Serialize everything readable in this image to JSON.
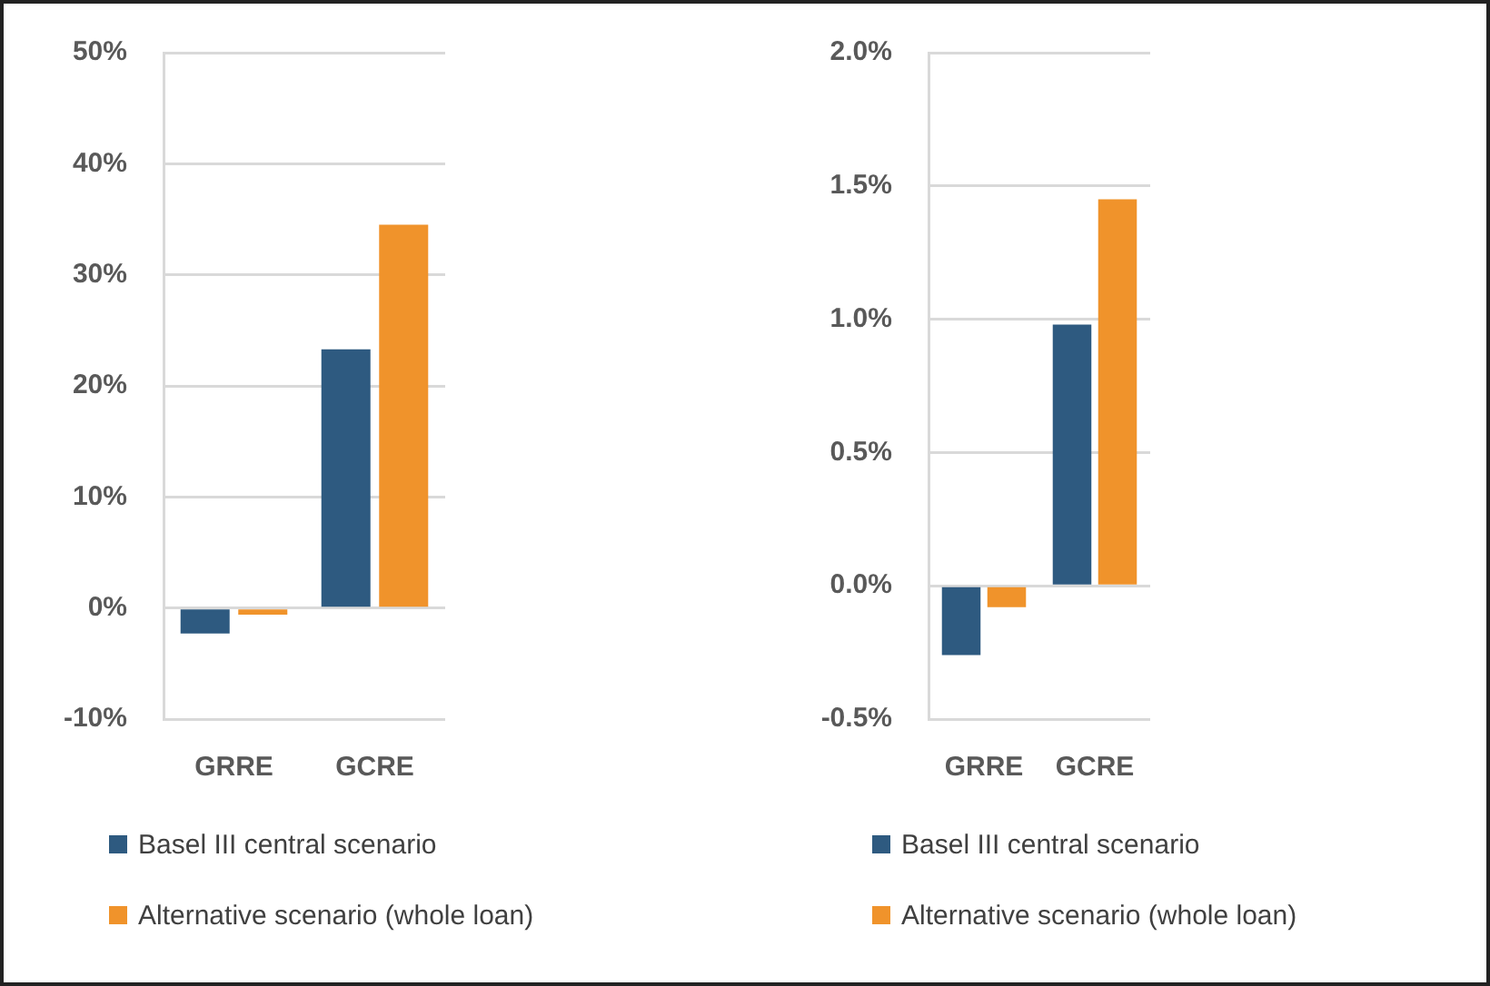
{
  "chart_data": [
    {
      "type": "bar",
      "categories": [
        "GRRE",
        "GCRE"
      ],
      "series": [
        {
          "name": "Basel III central scenario",
          "color": "#2e5a80",
          "values": [
            -2.3,
            23.3
          ]
        },
        {
          "name": "Alternative scenario (whole loan)",
          "color": "#f0932b",
          "values": [
            -0.6,
            34.5
          ]
        }
      ],
      "ylim": [
        -10,
        50
      ],
      "yticks": [
        {
          "value": -10,
          "label": "-10%"
        },
        {
          "value": 0,
          "label": "0%"
        },
        {
          "value": 10,
          "label": "10%"
        },
        {
          "value": 20,
          "label": "20%"
        },
        {
          "value": 30,
          "label": "30%"
        },
        {
          "value": 40,
          "label": "40%"
        },
        {
          "value": 50,
          "label": "50%"
        }
      ],
      "grid": "y",
      "legend": "bottom"
    },
    {
      "type": "bar",
      "categories": [
        "GRRE",
        "GCRE"
      ],
      "series": [
        {
          "name": "Basel III central scenario",
          "color": "#2e5a80",
          "values": [
            -0.26,
            0.98
          ]
        },
        {
          "name": "Alternative scenario (whole loan)",
          "color": "#f0932b",
          "values": [
            -0.08,
            1.45
          ]
        }
      ],
      "ylim": [
        -0.5,
        2.0
      ],
      "yticks": [
        {
          "value": -0.5,
          "label": "-0.5%"
        },
        {
          "value": 0,
          "label": "0.0%"
        },
        {
          "value": 0.5,
          "label": "0.5%"
        },
        {
          "value": 1.0,
          "label": "1.0%"
        },
        {
          "value": 1.5,
          "label": "1.5%"
        },
        {
          "value": 2.0,
          "label": "2.0%"
        }
      ],
      "grid": "y",
      "legend": "bottom"
    }
  ]
}
